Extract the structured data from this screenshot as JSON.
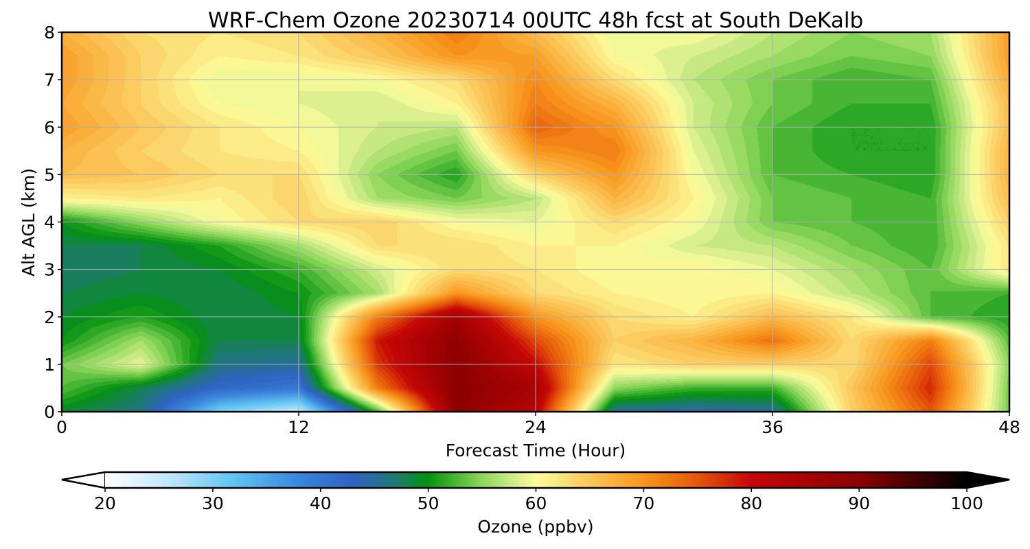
{
  "chart_data": {
    "type": "heatmap",
    "title": "WRF-Chem Ozone  20230714 00UTC 48h fcst at South DeKalb",
    "xlabel": "Forecast Time (Hour)",
    "ylabel": "Alt AGL (km)",
    "xlim": [
      0,
      48
    ],
    "ylim": [
      0,
      8
    ],
    "xticks": [
      0,
      12,
      24,
      36,
      48
    ],
    "yticks": [
      0,
      1,
      2,
      3,
      4,
      5,
      6,
      7,
      8
    ],
    "grid": true,
    "colorbar": {
      "label": "Ozone  (ppbv)",
      "min": 20,
      "max": 100,
      "ticks": [
        20,
        30,
        40,
        50,
        60,
        70,
        80,
        90,
        100
      ],
      "extend": "both",
      "orientation": "horizontal",
      "colors": [
        [
          20,
          "#ffffff"
        ],
        [
          26,
          "#bfe6fa"
        ],
        [
          32,
          "#5ec4f3"
        ],
        [
          38,
          "#3a86db"
        ],
        [
          43,
          "#2f62c2"
        ],
        [
          47,
          "#1d7a6e"
        ],
        [
          50,
          "#04920f"
        ],
        [
          55,
          "#8ed85a"
        ],
        [
          58,
          "#d2ec8c"
        ],
        [
          60,
          "#fbfc9a"
        ],
        [
          65,
          "#fbc65a"
        ],
        [
          70,
          "#f8961c"
        ],
        [
          75,
          "#e6570a"
        ],
        [
          80,
          "#c40606"
        ],
        [
          90,
          "#8c0000"
        ],
        [
          100,
          "#000000"
        ]
      ]
    },
    "x": [
      0,
      4,
      8,
      12,
      16,
      20,
      24,
      28,
      32,
      36,
      40,
      44,
      48
    ],
    "y": [
      0,
      0.5,
      1,
      1.5,
      2,
      2.5,
      3,
      3.5,
      4,
      4.5,
      5,
      5.5,
      6,
      6.5,
      7,
      7.5,
      8
    ],
    "z": [
      [
        49,
        46,
        30,
        25,
        52,
        90,
        82,
        45,
        44,
        45,
        64,
        75,
        54
      ],
      [
        53,
        48,
        42,
        40,
        72,
        90,
        85,
        55,
        52,
        52,
        65,
        78,
        54
      ],
      [
        54,
        59,
        46,
        45,
        77,
        90,
        80,
        62,
        64,
        64,
        63,
        76,
        55
      ],
      [
        50,
        56,
        48,
        48,
        79,
        89,
        76,
        64,
        67,
        73,
        63,
        72,
        53
      ],
      [
        49,
        51,
        48,
        49,
        72,
        86,
        70,
        63,
        61,
        66,
        62,
        53,
        51
      ],
      [
        48,
        49,
        48,
        50,
        56,
        70,
        63,
        61,
        60,
        61,
        57,
        53,
        52
      ],
      [
        47,
        48,
        49,
        52,
        58,
        63,
        62,
        60,
        61,
        59,
        56,
        53,
        62
      ],
      [
        48,
        48,
        51,
        56,
        63,
        63,
        61,
        61,
        58,
        57,
        54,
        52,
        62
      ],
      [
        50,
        55,
        60,
        63,
        64,
        60,
        59,
        63,
        60,
        54,
        53,
        52,
        64
      ],
      [
        61,
        62,
        61,
        64,
        56,
        54,
        57,
        67,
        61,
        54,
        53,
        52,
        66
      ],
      [
        66,
        65,
        63,
        63,
        55,
        51,
        64,
        70,
        60,
        53,
        52,
        51,
        67
      ],
      [
        67,
        64,
        62,
        61,
        57,
        54,
        70,
        72,
        59,
        53,
        51,
        51,
        67
      ],
      [
        69,
        65,
        62,
        60,
        58,
        57,
        74,
        70,
        58,
        53,
        51,
        51,
        66
      ],
      [
        68,
        64,
        60,
        59,
        58,
        61,
        72,
        67,
        58,
        54,
        52,
        52,
        66
      ],
      [
        69,
        64,
        59,
        59,
        60,
        63,
        71,
        63,
        57,
        54,
        52,
        53,
        68
      ],
      [
        69,
        64,
        61,
        62,
        65,
        70,
        69,
        60,
        58,
        56,
        54,
        55,
        69
      ],
      [
        67,
        63,
        62,
        63,
        67,
        72,
        66,
        59,
        60,
        57,
        55,
        56,
        69
      ]
    ]
  }
}
